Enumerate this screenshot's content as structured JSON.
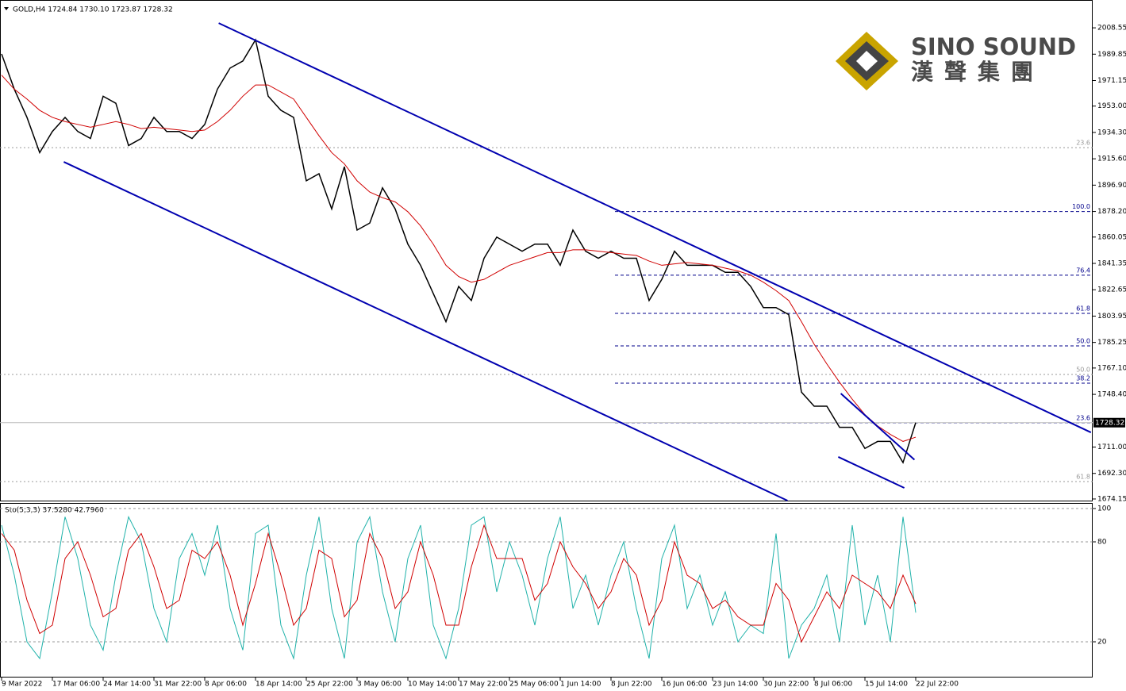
{
  "chart_data": [
    {
      "type": "line",
      "title": "GOLD,H4  1724.84 1730.10 1723.87 1728.32",
      "categories": [
        "9 Mar 2022",
        null,
        null,
        null,
        "17 Mar 06:00",
        null,
        null,
        null,
        "24 Mar 14:00",
        null,
        null,
        null,
        "31 Mar 22:00",
        null,
        null,
        null,
        "8 Apr 06:00",
        null,
        null,
        null,
        "18 Apr 14:00",
        null,
        null,
        null,
        "25 Apr 22:00",
        null,
        null,
        null,
        "3 May 06:00",
        null,
        null,
        null,
        "10 May 14:00",
        null,
        null,
        null,
        "17 May 22:00",
        null,
        null,
        null,
        "25 May 06:00",
        null,
        null,
        null,
        "1 Jun 14:00",
        null,
        null,
        null,
        "8 Jun 22:00",
        null,
        null,
        null,
        "16 Jun 06:00",
        null,
        null,
        null,
        "23 Jun 14:00",
        null,
        null,
        null,
        "30 Jun 22:00",
        null,
        null,
        null,
        "8 Jul 06:00",
        null,
        null,
        null,
        "15 Jul 14:00",
        null,
        null,
        null,
        "22 Jul 22:00"
      ],
      "series": [
        {
          "color": "#000000",
          "values": [
            1990,
            1965,
            1945,
            1920,
            1935,
            1945,
            1935,
            1930,
            1960,
            1955,
            1925,
            1930,
            1945,
            1935,
            1935,
            1930,
            1940,
            1965,
            1980,
            1985,
            2000,
            1960,
            1950,
            1945,
            1900,
            1905,
            1880,
            1910,
            1865,
            1870,
            1895,
            1880,
            1855,
            1840,
            1820,
            1800,
            1825,
            1815,
            1845,
            1860,
            1855,
            1850,
            1855,
            1855,
            1840,
            1865,
            1850,
            1845,
            1850,
            1845,
            1845,
            1815,
            1830,
            1850,
            1840,
            1840,
            1840,
            1835,
            1835,
            1825,
            1810,
            1810,
            1805,
            1750,
            1740,
            1740,
            1725,
            1725,
            1710,
            1715,
            1715,
            1700,
            1728.32
          ]
        },
        {
          "color": "#d00000",
          "values": [
            1975,
            1965,
            1958,
            1950,
            1945,
            1942,
            1940,
            1938,
            1940,
            1942,
            1940,
            1937,
            1938,
            1937,
            1936,
            1935,
            1936,
            1942,
            1950,
            1960,
            1968,
            1968,
            1963,
            1958,
            1945,
            1932,
            1920,
            1912,
            1900,
            1892,
            1888,
            1885,
            1878,
            1868,
            1855,
            1840,
            1832,
            1828,
            1830,
            1835,
            1840,
            1843,
            1846,
            1849,
            1849,
            1851,
            1851,
            1850,
            1849,
            1848,
            1847,
            1843,
            1840,
            1841,
            1842,
            1841,
            1840,
            1838,
            1836,
            1833,
            1828,
            1822,
            1815,
            1800,
            1784,
            1770,
            1757,
            1745,
            1734,
            1726,
            1720,
            1715,
            1718
          ]
        }
      ],
      "ylim": [
        1673,
        2028.3
      ],
      "yticks": [
        2008.55,
        1989.85,
        1971.15,
        {
          "value": 1953,
          "label": "1953.00"
        },
        {
          "value": 1934.3,
          "label": "1934.30"
        },
        {
          "value": 1915.6,
          "label": "1915.60"
        },
        {
          "value": 1896.9,
          "label": "1896.90"
        },
        {
          "value": 1878.2,
          "label": "1878.20"
        },
        1860.05,
        1841.35,
        1822.65,
        1803.95,
        1785.25,
        {
          "value": 1767.1,
          "label": "1767.10"
        },
        {
          "value": 1748.4,
          "label": "1748.40"
        },
        {
          "value": 1711,
          "label": "1711.00"
        },
        {
          "value": 1692.3,
          "label": "1692.30"
        },
        1674.15
      ],
      "last_price": 1728.32,
      "fib_levels": [
        {
          "value": 1923.5,
          "label": "23.6",
          "color": "#999999"
        },
        {
          "value": 1762.5,
          "label": "50.0",
          "color": "#999999"
        },
        {
          "value": 1686.5,
          "label": "61.8",
          "color": "#999999"
        },
        {
          "value": 1878.2,
          "label": "100.0",
          "color": "#00008b"
        },
        {
          "value": 1833,
          "label": "76.4",
          "color": "#00008b"
        },
        {
          "value": 1805.9,
          "label": "61.8",
          "color": "#00008b"
        },
        {
          "value": 1782.8,
          "label": "50.0",
          "color": "#00008b"
        },
        {
          "value": 1756.3,
          "label": "38.2",
          "color": "#00008b"
        },
        {
          "value": 1728.2,
          "label": "23.6",
          "color": "#00008b"
        }
      ],
      "trendlines": [
        {
          "x": [
            17.1,
            85.8
          ],
          "y": [
            2011.9,
            1721.4
          ],
          "color": "#0000b0"
        },
        {
          "x": [
            4.9,
            61.9
          ],
          "y": [
            1913.4,
            1673
          ],
          "color": "#0000b0"
        },
        {
          "x": [
            66.1,
            71.9
          ],
          "y": [
            1749,
            1702
          ],
          "color": "#0000b0"
        },
        {
          "x": [
            65.9,
            71.1
          ],
          "y": [
            1704,
            1682
          ],
          "color": "#0000b0"
        }
      ]
    },
    {
      "type": "line",
      "title": "Sto(5,3,3) 37.5280 42.7960",
      "series": [
        {
          "color": "#20b2aa",
          "values": [
            90,
            60,
            20,
            10,
            50,
            95,
            70,
            30,
            15,
            60,
            95,
            80,
            40,
            20,
            70,
            85,
            60,
            90,
            40,
            15,
            85,
            90,
            30,
            10,
            60,
            95,
            40,
            10,
            80,
            95,
            50,
            20,
            70,
            90,
            30,
            10,
            40,
            90,
            95,
            50,
            80,
            60,
            30,
            70,
            95,
            40,
            60,
            30,
            60,
            80,
            40,
            10,
            70,
            90,
            40,
            60,
            30,
            50,
            20,
            30,
            25,
            85,
            10,
            30,
            40,
            60,
            20,
            90,
            30,
            60,
            20,
            95,
            37.528
          ]
        },
        {
          "color": "#d00000",
          "values": [
            85,
            75,
            45,
            25,
            30,
            70,
            80,
            60,
            35,
            40,
            75,
            85,
            65,
            40,
            45,
            75,
            70,
            80,
            60,
            30,
            55,
            85,
            60,
            30,
            40,
            75,
            70,
            35,
            45,
            85,
            70,
            40,
            50,
            80,
            60,
            30,
            30,
            65,
            90,
            70,
            70,
            70,
            45,
            55,
            80,
            65,
            55,
            40,
            50,
            70,
            60,
            30,
            45,
            80,
            60,
            55,
            40,
            45,
            35,
            30,
            30,
            55,
            45,
            20,
            35,
            50,
            40,
            60,
            55,
            50,
            40,
            60,
            42.796
          ]
        }
      ],
      "ylim": [
        0,
        100
      ],
      "yticks": [
        20,
        80,
        100
      ]
    }
  ],
  "logo": {
    "name": "SINO SOUND",
    "subtitle": "漢聲集團"
  }
}
